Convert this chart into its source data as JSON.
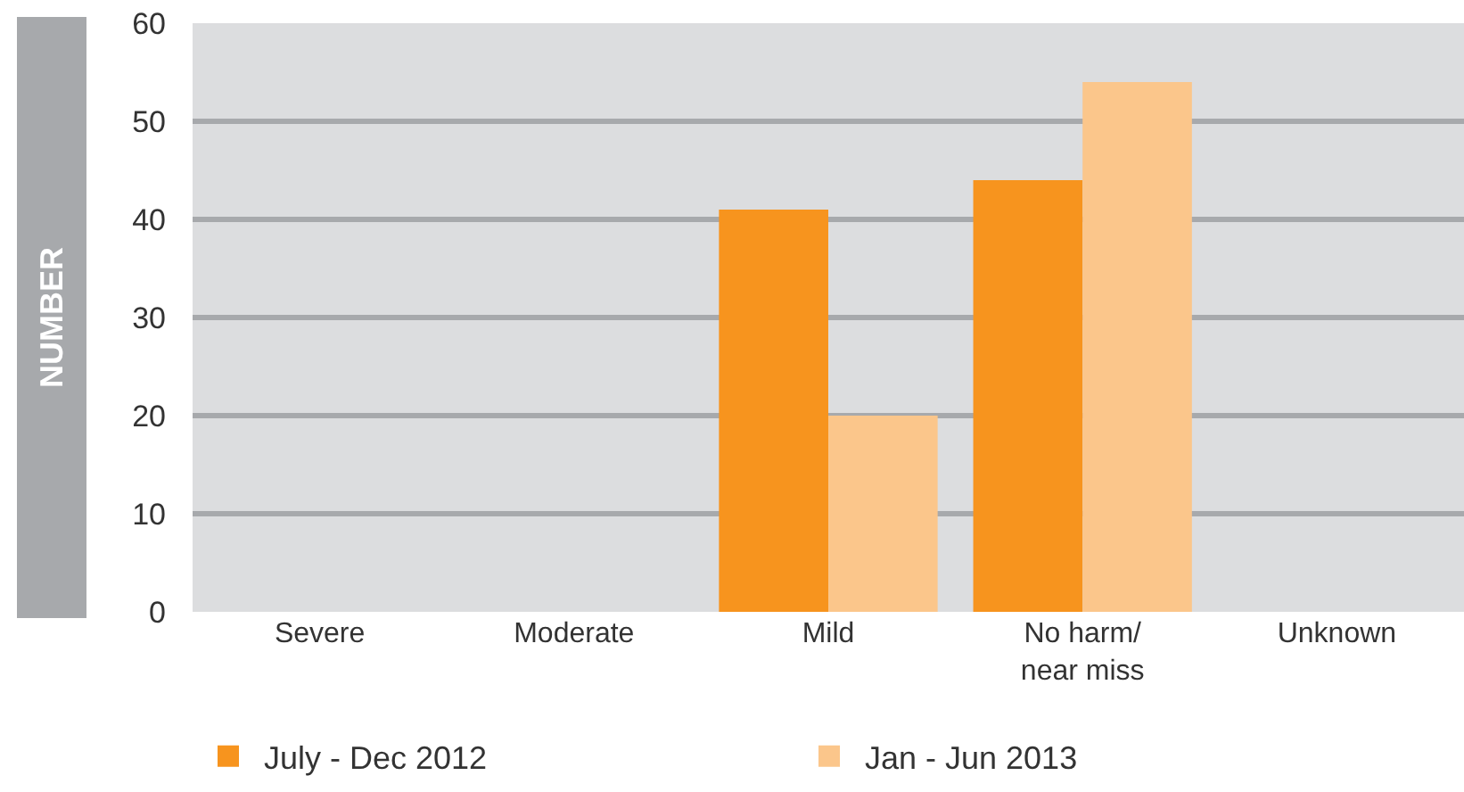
{
  "chart_data": {
    "type": "bar",
    "ylabel": "NUMBER",
    "categories": [
      "Severe",
      "Moderate",
      "Mild",
      "No harm/\nnear miss",
      "Unknown"
    ],
    "series": [
      {
        "name": "July - Dec 2012",
        "color": "#f7941e",
        "values": [
          0,
          0,
          41,
          44,
          0
        ]
      },
      {
        "name": "Jan - Jun 2013",
        "color": "#fbc68b",
        "values": [
          0,
          0,
          20,
          54,
          0
        ]
      }
    ],
    "ylim": [
      0,
      60
    ],
    "yticks": [
      0,
      10,
      20,
      30,
      40,
      50,
      60
    ],
    "grid": "y",
    "legend": "bottom"
  }
}
